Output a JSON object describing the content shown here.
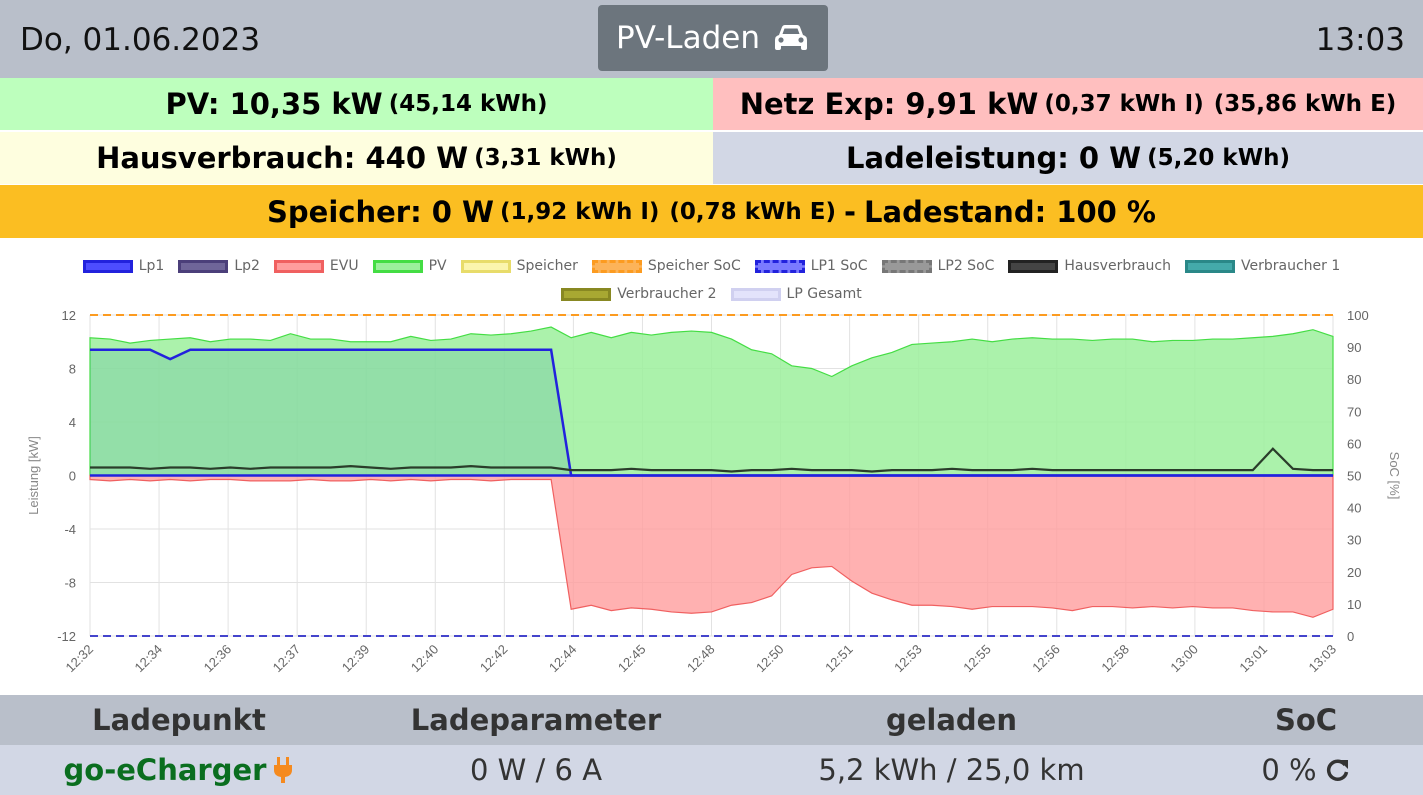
{
  "header": {
    "date": "Do, 01.06.2023",
    "mode_label": "PV-Laden",
    "mode_icon": "car-icon",
    "time": "13:03"
  },
  "summary": {
    "pv_main": "PV: 10,35 kW",
    "pv_sub": "(45,14 kWh)",
    "netz_main": "Netz Exp: 9,91 kW",
    "netz_sub1": "(0,37 kWh I)",
    "netz_sub2": "(35,86 kWh E)",
    "haus_main": "Hausverbrauch: 440 W",
    "haus_sub": "(3,31 kWh)",
    "lade_main": "Ladeleistung: 0 W",
    "lade_sub": "(5,20 kWh)",
    "speicher_main": "Speicher: 0 W",
    "speicher_sub1": "(1,92 kWh I)",
    "speicher_sub2": "(0,78 kWh E)",
    "speicher_sep": "-",
    "ladestand": "Ladestand: 100 %"
  },
  "colors": {
    "pv_bg": "#bdffbd",
    "netz_bg": "#ffbfbf",
    "haus_bg": "#fefedf",
    "lade_bg": "#d2d7e5",
    "speicher_bg": "#fbbe22",
    "header_bg": "#b9bfca",
    "lp_name": "#0a6e1f",
    "plug_icon": "#f58a1f"
  },
  "legend": {
    "row1": [
      {
        "label": "Lp1",
        "fill": "#4d4dff",
        "border": "#2222dd",
        "style": "solid"
      },
      {
        "label": "Lp2",
        "fill": "#6f6599",
        "border": "#4b3f7a",
        "style": "solid"
      },
      {
        "label": "EVU",
        "fill": "#ff9d9d",
        "border": "#f06060",
        "style": "solid"
      },
      {
        "label": "PV",
        "fill": "#9cf09c",
        "border": "#44dd44",
        "style": "solid"
      },
      {
        "label": "Speicher",
        "fill": "#fbf5ad",
        "border": "#e8dc6a",
        "style": "solid"
      },
      {
        "label": "Speicher SoC",
        "fill": "#fcb359",
        "border": "#fc9b20",
        "style": "dashed"
      },
      {
        "label": "LP1 SoC",
        "fill": "#7a7aff",
        "border": "#2222dd",
        "style": "dashed"
      },
      {
        "label": "LP2 SoC",
        "fill": "#999999",
        "border": "#777777",
        "style": "dashed"
      },
      {
        "label": "Hausverbrauch",
        "fill": "#444444",
        "border": "#222222",
        "style": "solid"
      },
      {
        "label": "Verbraucher 1",
        "fill": "#44aaaa",
        "border": "#2a8888",
        "style": "solid"
      }
    ],
    "row2": [
      {
        "label": "Verbraucher 2",
        "fill": "#a8a832",
        "border": "#888822",
        "style": "solid"
      },
      {
        "label": "LP Gesamt",
        "fill": "#e3e3fb",
        "border": "#d0d0f0",
        "style": "solid"
      }
    ]
  },
  "chart_data": {
    "type": "area",
    "ylabel": "Leistung [kW]",
    "y2label": "SoC [%]",
    "ylim": [
      -12,
      12
    ],
    "y2lim": [
      0,
      100
    ],
    "y_ticks": [
      -12,
      -8,
      -4,
      0,
      4,
      8,
      12
    ],
    "y2_ticks": [
      0,
      10,
      20,
      30,
      40,
      50,
      60,
      70,
      80,
      90,
      100
    ],
    "grid": true,
    "legend_position": "top",
    "x_tick_labels": [
      "12:32",
      "12:34",
      "12:36",
      "12:37",
      "12:39",
      "12:40",
      "12:42",
      "12:44",
      "12:45",
      "12:48",
      "12:50",
      "12:51",
      "12:53",
      "12:55",
      "12:56",
      "12:58",
      "13:00",
      "13:01",
      "13:03"
    ],
    "x_minutes": [
      0,
      0.5,
      1,
      1.5,
      2,
      2.5,
      3,
      3.5,
      4,
      4.5,
      5,
      5.5,
      6,
      6.5,
      7,
      7.5,
      8,
      8.5,
      9,
      9.5,
      10,
      10.5,
      11,
      11.5,
      12,
      12.5,
      13,
      13.5,
      14,
      14.5,
      15,
      15.5,
      16,
      16.5,
      17,
      17.5,
      18,
      18.5,
      19,
      19.5,
      20,
      20.5,
      21,
      21.5,
      22,
      22.5,
      23,
      23.5,
      24,
      24.5,
      25,
      25.5,
      26,
      26.5,
      27,
      27.5,
      28,
      28.5,
      29,
      29.5,
      30,
      30.5,
      31
    ],
    "series": [
      {
        "name": "PV",
        "values": [
          10.3,
          10.2,
          9.9,
          10.1,
          10.2,
          10.3,
          10.0,
          10.2,
          10.2,
          10.1,
          10.6,
          10.2,
          10.2,
          10.0,
          10.0,
          10.0,
          10.4,
          10.1,
          10.2,
          10.6,
          10.5,
          10.6,
          10.8,
          11.1,
          10.3,
          10.7,
          10.3,
          10.7,
          10.5,
          10.7,
          10.8,
          10.7,
          10.2,
          9.4,
          9.1,
          8.2,
          8.0,
          7.4,
          8.2,
          8.8,
          9.2,
          9.8,
          9.9,
          10.0,
          10.2,
          10.0,
          10.2,
          10.3,
          10.2,
          10.2,
          10.1,
          10.2,
          10.2,
          10.0,
          10.1,
          10.1,
          10.2,
          10.2,
          10.3,
          10.4,
          10.6,
          10.9,
          10.4
        ]
      },
      {
        "name": "EVU",
        "values": [
          -0.3,
          -0.4,
          -0.3,
          -0.4,
          -0.3,
          -0.4,
          -0.3,
          -0.3,
          -0.4,
          -0.4,
          -0.4,
          -0.3,
          -0.4,
          -0.4,
          -0.3,
          -0.4,
          -0.3,
          -0.4,
          -0.3,
          -0.3,
          -0.4,
          -0.3,
          -0.3,
          -0.3,
          -10.0,
          -9.7,
          -10.1,
          -9.9,
          -10.0,
          -10.2,
          -10.3,
          -10.2,
          -9.7,
          -9.5,
          -9.0,
          -7.4,
          -6.9,
          -6.8,
          -7.9,
          -8.8,
          -9.3,
          -9.7,
          -9.7,
          -9.8,
          -10.0,
          -9.8,
          -9.8,
          -9.8,
          -9.9,
          -10.1,
          -9.8,
          -9.8,
          -9.9,
          -9.8,
          -9.9,
          -9.8,
          -9.9,
          -9.9,
          -10.1,
          -10.2,
          -10.2,
          -10.6,
          -10.0
        ]
      },
      {
        "name": "Lp1",
        "values": [
          9.4,
          9.4,
          9.4,
          9.4,
          8.7,
          9.4,
          9.4,
          9.4,
          9.4,
          9.4,
          9.4,
          9.4,
          9.4,
          9.4,
          9.4,
          9.4,
          9.4,
          9.4,
          9.4,
          9.4,
          9.4,
          9.4,
          9.4,
          9.4,
          0,
          0,
          0,
          0,
          0,
          0,
          0,
          0,
          0,
          0,
          0,
          0,
          0,
          0,
          0,
          0,
          0,
          0,
          0,
          0,
          0,
          0,
          0,
          0,
          0,
          0,
          0,
          0,
          0,
          0,
          0,
          0,
          0,
          0,
          0,
          0,
          0,
          0,
          0
        ]
      },
      {
        "name": "Hausverbrauch",
        "values": [
          0.6,
          0.6,
          0.6,
          0.5,
          0.6,
          0.6,
          0.5,
          0.6,
          0.5,
          0.6,
          0.6,
          0.6,
          0.6,
          0.7,
          0.6,
          0.5,
          0.6,
          0.6,
          0.6,
          0.7,
          0.6,
          0.6,
          0.6,
          0.6,
          0.4,
          0.4,
          0.4,
          0.5,
          0.4,
          0.4,
          0.4,
          0.4,
          0.3,
          0.4,
          0.4,
          0.5,
          0.4,
          0.4,
          0.4,
          0.3,
          0.4,
          0.4,
          0.4,
          0.5,
          0.4,
          0.4,
          0.4,
          0.5,
          0.4,
          0.4,
          0.4,
          0.4,
          0.4,
          0.4,
          0.4,
          0.4,
          0.4,
          0.4,
          0.4,
          2.0,
          0.5,
          0.4,
          0.4
        ]
      },
      {
        "name": "Speicher SoC",
        "axis": "soc",
        "values": [
          100,
          100,
          100,
          100,
          100,
          100,
          100,
          100,
          100,
          100,
          100,
          100,
          100,
          100,
          100,
          100,
          100,
          100,
          100,
          100,
          100,
          100,
          100,
          100,
          100,
          100,
          100,
          100,
          100,
          100,
          100,
          100,
          100,
          100,
          100,
          100,
          100,
          100,
          100,
          100,
          100,
          100,
          100,
          100,
          100,
          100,
          100,
          100,
          100,
          100,
          100,
          100,
          100,
          100,
          100,
          100,
          100,
          100,
          100,
          100,
          100,
          100,
          100
        ]
      },
      {
        "name": "LP1 SoC",
        "axis": "soc",
        "values": [
          0,
          0,
          0,
          0,
          0,
          0,
          0,
          0,
          0,
          0,
          0,
          0,
          0,
          0,
          0,
          0,
          0,
          0,
          0,
          0,
          0,
          0,
          0,
          0,
          0,
          0,
          0,
          0,
          0,
          0,
          0,
          0,
          0,
          0,
          0,
          0,
          0,
          0,
          0,
          0,
          0,
          0,
          0,
          0,
          0,
          0,
          0,
          0,
          0,
          0,
          0,
          0,
          0,
          0,
          0,
          0,
          0,
          0,
          0,
          0,
          0,
          0,
          0
        ]
      }
    ]
  },
  "ladepunkte": {
    "headers": [
      "Ladepunkt",
      "Ladeparameter",
      "geladen",
      "SoC"
    ],
    "rows": [
      {
        "name": "go-eCharger",
        "icon": "plug-icon",
        "params": "0 W / 6 A",
        "charged": "5,2 kWh / 25,0 km",
        "soc": "0 %",
        "soc_icon": "refresh-icon"
      }
    ]
  }
}
